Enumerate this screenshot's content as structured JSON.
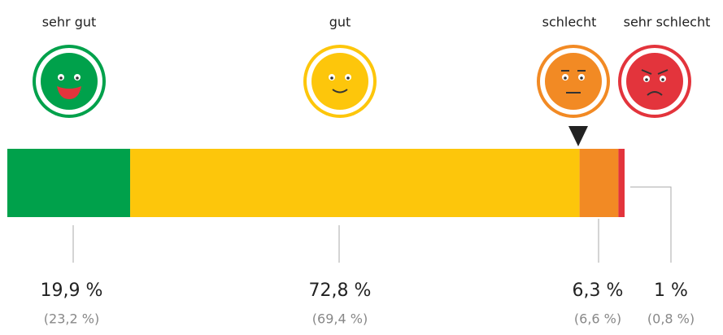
{
  "chart_data": {
    "type": "stacked-bar",
    "categories": [
      "sehr gut",
      "gut",
      "schlecht",
      "sehr schlecht"
    ],
    "values": [
      19.9,
      72.8,
      6.3,
      1
    ],
    "value_labels": [
      "19,9 %",
      "72,8 %",
      "6,3 %",
      "1 %"
    ],
    "comparison_values": [
      23.2,
      69.4,
      6.6,
      0.8
    ],
    "comparison_labels": [
      "(23,2 %)",
      "(69,4 %)",
      "(6,6 %)",
      "(0,8 %)"
    ],
    "colors": [
      "#00a14b",
      "#fdc60b",
      "#f28a24",
      "#e3343c"
    ]
  }
}
